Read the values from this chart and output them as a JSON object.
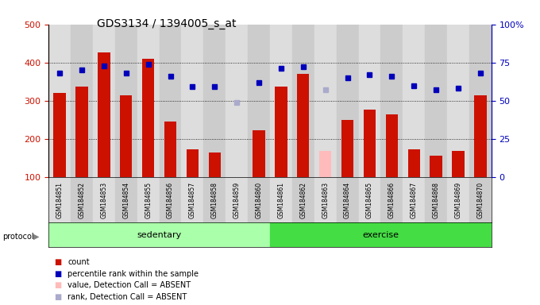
{
  "title": "GDS3134 / 1394005_s_at",
  "samples": [
    "GSM184851",
    "GSM184852",
    "GSM184853",
    "GSM184854",
    "GSM184855",
    "GSM184856",
    "GSM184857",
    "GSM184858",
    "GSM184859",
    "GSM184860",
    "GSM184861",
    "GSM184862",
    "GSM184863",
    "GSM184864",
    "GSM184865",
    "GSM184866",
    "GSM184867",
    "GSM184868",
    "GSM184869",
    "GSM184870"
  ],
  "bar_values": [
    320,
    337,
    427,
    315,
    410,
    245,
    172,
    165,
    null,
    222,
    337,
    370,
    null,
    249,
    277,
    263,
    172,
    155,
    168,
    315
  ],
  "bar_absent": [
    null,
    null,
    null,
    null,
    null,
    null,
    null,
    null,
    null,
    null,
    null,
    null,
    168,
    null,
    null,
    null,
    null,
    null,
    null,
    null
  ],
  "rank_values": [
    68,
    70,
    73,
    68,
    74,
    66,
    59,
    59,
    null,
    62,
    71,
    72,
    null,
    65,
    67,
    66,
    60,
    57,
    58,
    68
  ],
  "rank_absent": [
    null,
    null,
    null,
    null,
    null,
    null,
    null,
    null,
    49,
    null,
    null,
    null,
    57,
    null,
    null,
    null,
    null,
    null,
    null,
    null
  ],
  "protocol_groups": [
    {
      "label": "sedentary",
      "start": 0,
      "end": 10,
      "color": "#aaffaa"
    },
    {
      "label": "exercise",
      "start": 10,
      "end": 20,
      "color": "#44dd44"
    }
  ],
  "ylim_left": [
    100,
    500
  ],
  "ylim_right": [
    0,
    100
  ],
  "yticks_left": [
    100,
    200,
    300,
    400,
    500
  ],
  "yticks_right": [
    0,
    25,
    50,
    75,
    100
  ],
  "ytick_labels_right": [
    "0",
    "25",
    "50",
    "75",
    "100%"
  ],
  "bar_color": "#cc1100",
  "bar_absent_color": "#ffbbbb",
  "rank_color": "#0000bb",
  "rank_absent_color": "#aaaacc",
  "plot_bg": "#ffffff",
  "col_bg_even": "#dddddd",
  "col_bg_odd": "#cccccc",
  "bar_width": 0.55
}
